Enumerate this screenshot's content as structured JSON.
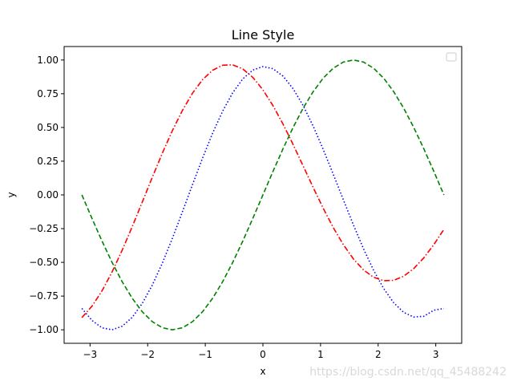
{
  "chart_data": {
    "type": "line",
    "title": "Line Style",
    "xlabel": "x",
    "ylabel": "y",
    "xlim": [
      -3.45,
      3.45
    ],
    "ylim": [
      -1.1,
      1.1
    ],
    "x_ticks": [
      -3,
      -2,
      -1,
      0,
      1,
      2,
      3
    ],
    "x_tick_labels": [
      "−3",
      "−2",
      "−1",
      "0",
      "1",
      "2",
      "3"
    ],
    "y_ticks": [
      -1.0,
      -0.75,
      -0.5,
      -0.25,
      0.0,
      0.25,
      0.5,
      0.75,
      1.0
    ],
    "y_tick_labels": [
      "−1.00",
      "−0.75",
      "−0.50",
      "−0.25",
      "0.00",
      "0.25",
      "0.50",
      "0.75",
      "1.00"
    ],
    "grid": false,
    "legend": {
      "position": "top-right",
      "entries": []
    },
    "x": [
      -3.1416,
      -2.9671,
      -2.7925,
      -2.618,
      -2.4435,
      -2.2689,
      -2.0944,
      -1.9199,
      -1.7453,
      -1.5708,
      -1.3963,
      -1.2217,
      -1.0472,
      -0.8727,
      -0.6981,
      -0.5236,
      -0.3491,
      -0.1745,
      0.0,
      0.1745,
      0.3491,
      0.5236,
      0.6981,
      0.8727,
      1.0472,
      1.2217,
      1.3963,
      1.5708,
      1.7453,
      1.9199,
      2.0944,
      2.2689,
      2.4435,
      2.618,
      2.7925,
      2.9671,
      3.1416
    ],
    "series": [
      {
        "color": "#0000ff",
        "line_style": "dotted",
        "values": [
          -0.8415,
          -0.9305,
          -0.9854,
          -0.9999,
          -0.9738,
          -0.908,
          -0.8048,
          -0.6688,
          -0.5054,
          -0.3214,
          -0.1247,
          0.0763,
          0.2733,
          0.4577,
          0.6215,
          0.7575,
          0.8603,
          0.9257,
          0.9511,
          0.9358,
          0.8805,
          0.7877,
          0.6622,
          0.5095,
          0.3369,
          0.1523,
          -0.0363,
          -0.2225,
          -0.3988,
          -0.5578,
          -0.6931,
          -0.7992,
          -0.8711,
          -0.9053,
          -0.8999,
          -0.8547,
          -0.8415
        ]
      },
      {
        "color": "#ff0000",
        "line_style": "dashdot",
        "values": [
          -0.9093,
          -0.8254,
          -0.7112,
          -0.5713,
          -0.411,
          -0.2364,
          -0.0537,
          0.1305,
          0.3094,
          0.477,
          0.6269,
          0.7543,
          0.8547,
          0.9243,
          0.9612,
          0.9643,
          0.9337,
          0.871,
          0.779,
          0.662,
          0.525,
          0.3738,
          0.2149,
          0.055,
          -0.0997,
          -0.2427,
          -0.3691,
          -0.4747,
          -0.5559,
          -0.6102,
          -0.6362,
          -0.6334,
          -0.6027,
          -0.546,
          -0.4664,
          -0.3679,
          -0.2553
        ]
      },
      {
        "color": "#008000",
        "line_style": "dashed",
        "values": [
          0.0,
          -0.1736,
          -0.342,
          -0.5,
          -0.6428,
          -0.766,
          -0.866,
          -0.9397,
          -0.9848,
          -1.0,
          -0.9848,
          -0.9397,
          -0.866,
          -0.766,
          -0.6428,
          -0.5,
          -0.342,
          -0.1736,
          0.0,
          0.1736,
          0.342,
          0.5,
          0.6428,
          0.766,
          0.866,
          0.9397,
          0.9848,
          1.0,
          0.9848,
          0.9397,
          0.866,
          0.766,
          0.6428,
          0.5,
          0.342,
          0.1736,
          0.0
        ]
      }
    ]
  },
  "watermark": "https://blog.csdn.net/qq_45488242"
}
